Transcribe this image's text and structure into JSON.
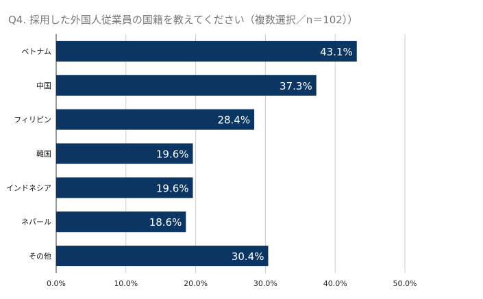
{
  "title": "Q4. 採用した外国人従業員の国籍を教えてください（複数選択／n＝102））",
  "colors": {
    "bar": "#0b3664",
    "grid": "#cccccc",
    "axis": "#333333"
  },
  "chart_data": {
    "type": "bar",
    "orientation": "horizontal",
    "title": "Q4. 採用した外国人従業員の国籍を教えてください（複数選択／n＝102））",
    "categories": [
      "ベトナム",
      "中国",
      "フィリピン",
      "韓国",
      "インドネシア",
      "ネパール",
      "その他"
    ],
    "values": [
      43.1,
      37.3,
      28.4,
      19.6,
      19.6,
      18.6,
      30.4
    ],
    "data_labels": [
      "43.1%",
      "37.3%",
      "28.4%",
      "19.6%",
      "19.6%",
      "18.6%",
      "30.4%"
    ],
    "xlim": [
      0,
      50
    ],
    "x_ticks": [
      "0.0%",
      "10.0%",
      "20.0%",
      "30.0%",
      "40.0%",
      "50.0%"
    ],
    "grid": true,
    "legend": "none"
  }
}
